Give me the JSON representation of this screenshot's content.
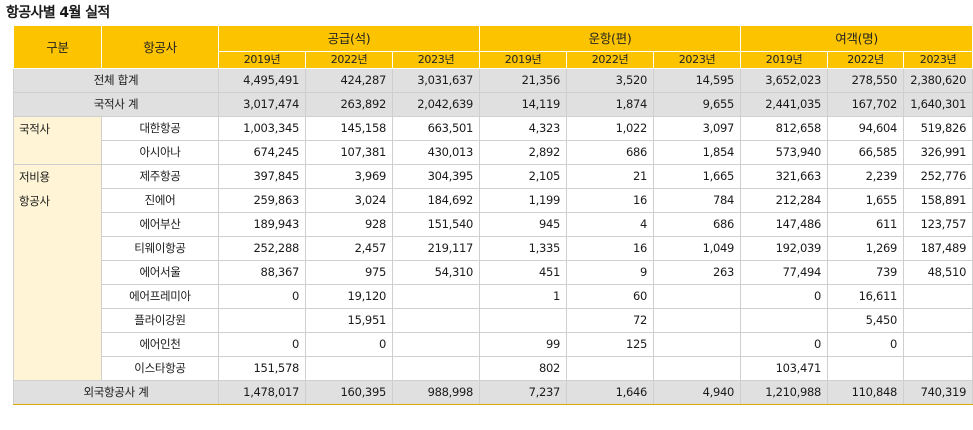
{
  "title": "항공사별 4월 실적",
  "headers": {
    "category": "구분",
    "airline": "항공사",
    "groups": [
      "공급(석)",
      "운항(편)",
      "여객(명)"
    ],
    "years": [
      "2019년",
      "2022년",
      "2023년"
    ]
  },
  "summary_rows": [
    {
      "label": "전체 합계",
      "values": [
        "4,495,491",
        "424,287",
        "3,031,637",
        "21,356",
        "3,520",
        "14,595",
        "3,652,023",
        "278,550",
        "2,380,620"
      ]
    },
    {
      "label": "국적사 계",
      "values": [
        "3,017,474",
        "263,892",
        "2,042,639",
        "14,119",
        "1,874",
        "9,655",
        "2,441,035",
        "167,702",
        "1,640,301"
      ]
    }
  ],
  "groups": [
    {
      "label": "국적사",
      "rows": [
        {
          "airline": "대한항공",
          "values": [
            "1,003,345",
            "145,158",
            "663,501",
            "4,323",
            "1,022",
            "3,097",
            "812,658",
            "94,604",
            "519,826"
          ]
        },
        {
          "airline": "아시아나",
          "values": [
            "674,245",
            "107,381",
            "430,013",
            "2,892",
            "686",
            "1,854",
            "573,940",
            "66,585",
            "326,991"
          ]
        }
      ]
    },
    {
      "label": "저비용 항공사",
      "rows": [
        {
          "airline": "제주항공",
          "values": [
            "397,845",
            "3,969",
            "304,395",
            "2,105",
            "21",
            "1,665",
            "321,663",
            "2,239",
            "252,776"
          ]
        },
        {
          "airline": "진에어",
          "values": [
            "259,863",
            "3,024",
            "184,692",
            "1,199",
            "16",
            "784",
            "212,284",
            "1,655",
            "158,891"
          ]
        },
        {
          "airline": "에어부산",
          "values": [
            "189,943",
            "928",
            "151,540",
            "945",
            "4",
            "686",
            "147,486",
            "611",
            "123,757"
          ]
        },
        {
          "airline": "티웨이항공",
          "values": [
            "252,288",
            "2,457",
            "219,117",
            "1,335",
            "16",
            "1,049",
            "192,039",
            "1,269",
            "187,489"
          ]
        },
        {
          "airline": "에어서울",
          "values": [
            "88,367",
            "975",
            "54,310",
            "451",
            "9",
            "263",
            "77,494",
            "739",
            "48,510"
          ]
        },
        {
          "airline": "에어프레미아",
          "values": [
            "0",
            "19,120",
            "",
            "1",
            "60",
            "",
            "0",
            "16,611",
            ""
          ]
        },
        {
          "airline": "플라이강원",
          "values": [
            "",
            "15,951",
            "",
            "",
            "72",
            "",
            "",
            "5,450",
            ""
          ]
        },
        {
          "airline": "에어인천",
          "values": [
            "0",
            "0",
            "",
            "99",
            "125",
            "",
            "0",
            "0",
            ""
          ]
        },
        {
          "airline": "이스타항공",
          "values": [
            "151,578",
            "",
            "",
            "802",
            "",
            "",
            "103,471",
            "",
            ""
          ]
        }
      ]
    }
  ],
  "footer_row": {
    "label": "외국항공사 계",
    "values": [
      "1,478,017",
      "160,395",
      "988,998",
      "7,237",
      "1,646",
      "4,940",
      "1,210,988",
      "110,848",
      "740,319"
    ]
  }
}
